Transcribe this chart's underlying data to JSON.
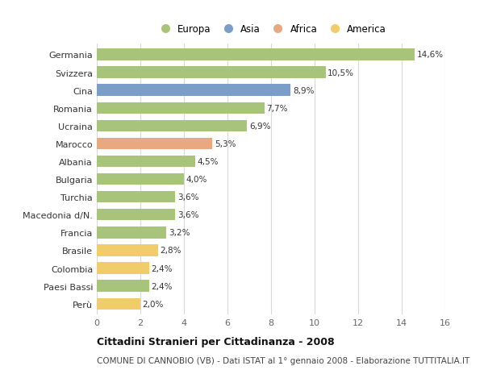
{
  "countries": [
    "Germania",
    "Svizzera",
    "Cina",
    "Romania",
    "Ucraina",
    "Marocco",
    "Albania",
    "Bulgaria",
    "Turchia",
    "Macedonia d/N.",
    "Francia",
    "Brasile",
    "Colombia",
    "Paesi Bassi",
    "Perù"
  ],
  "values": [
    14.6,
    10.5,
    8.9,
    7.7,
    6.9,
    5.3,
    4.5,
    4.0,
    3.6,
    3.6,
    3.2,
    2.8,
    2.4,
    2.4,
    2.0
  ],
  "labels": [
    "14,6%",
    "10,5%",
    "8,9%",
    "7,7%",
    "6,9%",
    "5,3%",
    "4,5%",
    "4,0%",
    "3,6%",
    "3,6%",
    "3,2%",
    "2,8%",
    "2,4%",
    "2,4%",
    "2,0%"
  ],
  "categories": [
    "Europa",
    "Asia",
    "Africa",
    "America"
  ],
  "bar_colors": [
    "#a8c47a",
    "#a8c47a",
    "#7b9ec8",
    "#a8c47a",
    "#a8c47a",
    "#e8a882",
    "#a8c47a",
    "#a8c47a",
    "#a8c47a",
    "#a8c47a",
    "#a8c47a",
    "#f0cc6a",
    "#f0cc6a",
    "#a8c47a",
    "#f0cc6a"
  ],
  "legend_colors": [
    "#a8c47a",
    "#7b9ec8",
    "#e8a882",
    "#f0cc6a"
  ],
  "bg_color": "#ffffff",
  "plot_bg_color": "#ffffff",
  "xlim": [
    0,
    16
  ],
  "xticks": [
    0,
    2,
    4,
    6,
    8,
    10,
    12,
    14,
    16
  ],
  "title": "Cittadini Stranieri per Cittadinanza - 2008",
  "subtitle": "COMUNE DI CANNOBIO (VB) - Dati ISTAT al 1° gennaio 2008 - Elaborazione TUTTITALIA.IT",
  "grid_color": "#d8d8d8",
  "bar_height": 0.65,
  "label_fontsize": 7.5,
  "ytick_fontsize": 8,
  "xtick_fontsize": 8,
  "legend_fontsize": 8.5,
  "title_fontsize": 9,
  "subtitle_fontsize": 7.5
}
